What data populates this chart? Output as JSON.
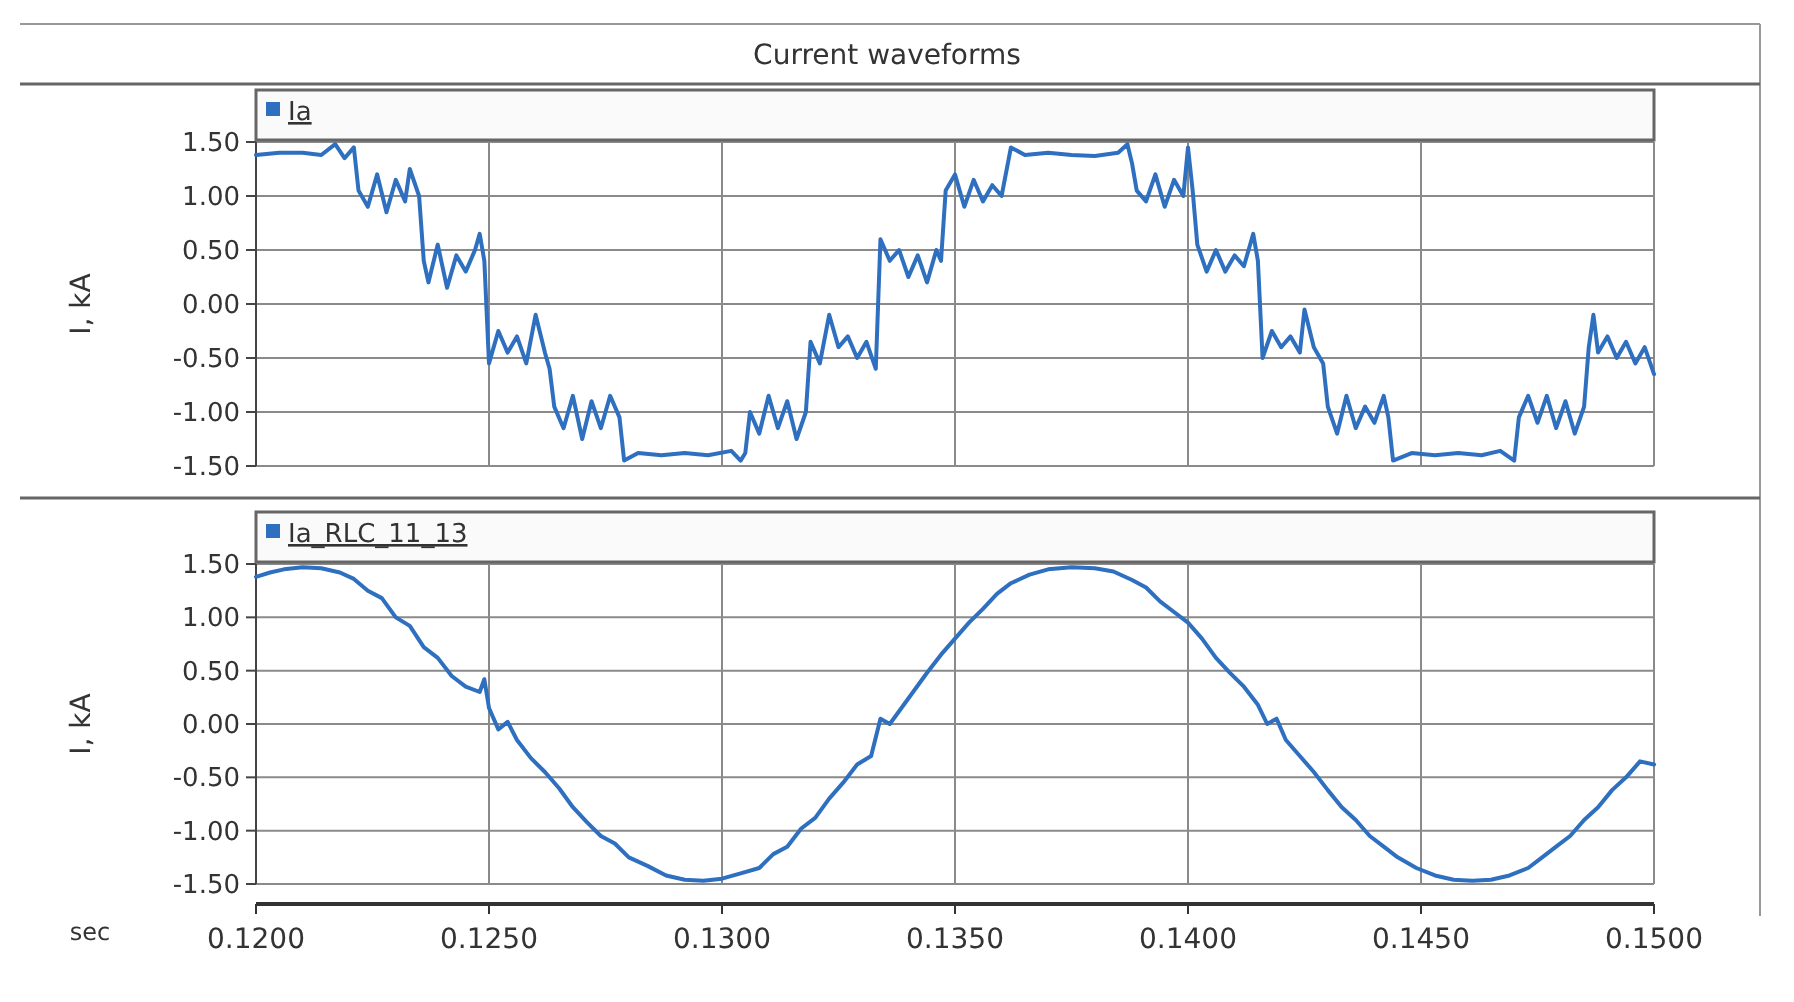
{
  "chart_data": [
    {
      "type": "line",
      "title": "Current waveforms",
      "ylabel": "I, kA",
      "xlim": [
        0.12,
        0.15
      ],
      "xticks": [
        {
          "value": 0.12,
          "label": null
        },
        {
          "value": 0.125,
          "label": null
        },
        {
          "value": 0.13,
          "label": null
        },
        {
          "value": 0.135,
          "label": null
        },
        {
          "value": 0.14,
          "label": null
        },
        {
          "value": 0.145,
          "label": null
        },
        {
          "value": 0.15,
          "label": null
        }
      ],
      "ylim": [
        -1.5,
        1.5
      ],
      "yticks": [
        {
          "value": 1.5,
          "label": "1.50"
        },
        {
          "value": 1,
          "label": "1.00"
        },
        {
          "value": 0.5,
          "label": "0.50"
        },
        {
          "value": 0,
          "label": "0.00"
        },
        {
          "value": -0.5,
          "label": "-0.50"
        },
        {
          "value": -1,
          "label": "-1.00"
        },
        {
          "value": -1.5,
          "label": "-1.50"
        }
      ],
      "grid": true,
      "legend": "top left",
      "tick_labels": "y",
      "series": [
        {
          "name": "Ia",
          "color": "#2f6fc0",
          "x": [
            0.12,
            0.1205,
            0.121,
            0.1214,
            0.1217,
            0.1219,
            0.1221,
            0.1222,
            0.1224,
            0.1226,
            0.1228,
            0.123,
            0.1232,
            0.1233,
            0.1235,
            0.1236,
            0.1237,
            0.1239,
            0.1241,
            0.1243,
            0.1245,
            0.1247,
            0.1248,
            0.1249,
            0.125,
            0.1252,
            0.1254,
            0.1256,
            0.1258,
            0.126,
            0.1262,
            0.1263,
            0.1264,
            0.1266,
            0.1268,
            0.127,
            0.1272,
            0.1274,
            0.1276,
            0.1278,
            0.1279,
            0.1282,
            0.1287,
            0.1292,
            0.1297,
            0.1302,
            0.1304,
            0.1305,
            0.1306,
            0.1308,
            0.131,
            0.1312,
            0.1314,
            0.1316,
            0.1318,
            0.1319,
            0.1321,
            0.1323,
            0.1325,
            0.1327,
            0.1329,
            0.1331,
            0.1333,
            0.1334,
            0.1336,
            0.1338,
            0.134,
            0.1342,
            0.1344,
            0.1346,
            0.1347,
            0.1348,
            0.135,
            0.1352,
            0.1354,
            0.1356,
            0.1358,
            0.136,
            0.1362,
            0.1365,
            0.137,
            0.1375,
            0.138,
            0.1385,
            0.1387,
            0.1388,
            0.1389,
            0.1391,
            0.1393,
            0.1395,
            0.1397,
            0.1399,
            0.14,
            0.1401,
            0.1402,
            0.1404,
            0.1406,
            0.1408,
            0.141,
            0.1412,
            0.1414,
            0.1415,
            0.1416,
            0.1418,
            0.142,
            0.1422,
            0.1424,
            0.1425,
            0.1427,
            0.1429,
            0.143,
            0.1432,
            0.1434,
            0.1436,
            0.1438,
            0.144,
            0.1442,
            0.1443,
            0.1444,
            0.1448,
            0.1453,
            0.1458,
            0.1463,
            0.1467,
            0.147,
            0.1471,
            0.1473,
            0.1475,
            0.1477,
            0.1479,
            0.1481,
            0.1483,
            0.1485,
            0.1486,
            0.1487,
            0.1488,
            0.149,
            0.1492,
            0.1494,
            0.1496,
            0.1498,
            0.15
          ],
          "values": [
            1.38,
            1.4,
            1.4,
            1.38,
            1.48,
            1.35,
            1.45,
            1.05,
            0.9,
            1.2,
            0.85,
            1.15,
            0.95,
            1.25,
            1.0,
            0.4,
            0.2,
            0.55,
            0.15,
            0.45,
            0.3,
            0.5,
            0.65,
            0.4,
            -0.55,
            -0.25,
            -0.45,
            -0.3,
            -0.55,
            -0.1,
            -0.45,
            -0.6,
            -0.95,
            -1.15,
            -0.85,
            -1.25,
            -0.9,
            -1.15,
            -0.85,
            -1.05,
            -1.45,
            -1.38,
            -1.4,
            -1.38,
            -1.4,
            -1.36,
            -1.45,
            -1.38,
            -1.0,
            -1.2,
            -0.85,
            -1.15,
            -0.9,
            -1.25,
            -1.0,
            -0.35,
            -0.55,
            -0.1,
            -0.4,
            -0.3,
            -0.5,
            -0.35,
            -0.6,
            0.6,
            0.4,
            0.5,
            0.25,
            0.45,
            0.2,
            0.5,
            0.4,
            1.05,
            1.2,
            0.9,
            1.15,
            0.95,
            1.1,
            1.0,
            1.45,
            1.38,
            1.4,
            1.38,
            1.37,
            1.4,
            1.48,
            1.3,
            1.05,
            0.95,
            1.2,
            0.9,
            1.15,
            1.0,
            1.45,
            1.05,
            0.55,
            0.3,
            0.5,
            0.3,
            0.45,
            0.35,
            0.65,
            0.4,
            -0.5,
            -0.25,
            -0.4,
            -0.3,
            -0.45,
            -0.05,
            -0.4,
            -0.55,
            -0.95,
            -1.2,
            -0.85,
            -1.15,
            -0.95,
            -1.1,
            -0.85,
            -1.05,
            -1.45,
            -1.38,
            -1.4,
            -1.38,
            -1.4,
            -1.36,
            -1.45,
            -1.05,
            -0.85,
            -1.1,
            -0.85,
            -1.15,
            -0.9,
            -1.2,
            -0.95,
            -0.4,
            -0.1,
            -0.45,
            -0.3,
            -0.5,
            -0.35,
            -0.55,
            -0.4,
            -0.65
          ]
        }
      ]
    },
    {
      "type": "line",
      "ylabel": "I, kA",
      "xlabel": "sec",
      "xlim": [
        0.12,
        0.15
      ],
      "xticks": [
        {
          "value": 0.12,
          "label": "0.1200"
        },
        {
          "value": 0.125,
          "label": "0.1250"
        },
        {
          "value": 0.13,
          "label": "0.1300"
        },
        {
          "value": 0.135,
          "label": "0.1350"
        },
        {
          "value": 0.14,
          "label": "0.1400"
        },
        {
          "value": 0.145,
          "label": "0.1450"
        },
        {
          "value": 0.15,
          "label": "0.1500"
        }
      ],
      "ylim": [
        -1.5,
        1.5
      ],
      "yticks": [
        {
          "value": 1.5,
          "label": "1.50"
        },
        {
          "value": 1,
          "label": "1.00"
        },
        {
          "value": 0.5,
          "label": "0.50"
        },
        {
          "value": 0,
          "label": "0.00"
        },
        {
          "value": -0.5,
          "label": "-0.50"
        },
        {
          "value": -1,
          "label": "-1.00"
        },
        {
          "value": -1.5,
          "label": "-1.50"
        }
      ],
      "grid": true,
      "legend": "top left",
      "series": [
        {
          "name": "Ia_RLC_11_13",
          "color": "#2f6fc0",
          "x": [
            0.12,
            0.1203,
            0.1206,
            0.121,
            0.1214,
            0.1218,
            0.1221,
            0.1224,
            0.1227,
            0.123,
            0.1233,
            0.1236,
            0.1239,
            0.1242,
            0.1245,
            0.1248,
            0.1249,
            0.125,
            0.1252,
            0.1254,
            0.1256,
            0.1259,
            0.1262,
            0.1265,
            0.1268,
            0.1271,
            0.1274,
            0.1277,
            0.128,
            0.1284,
            0.1288,
            0.1292,
            0.1296,
            0.13,
            0.1304,
            0.1308,
            0.1311,
            0.1314,
            0.1317,
            0.132,
            0.1323,
            0.1326,
            0.1329,
            0.1332,
            0.1334,
            0.1336,
            0.1338,
            0.1341,
            0.1344,
            0.1347,
            0.135,
            0.1353,
            0.1356,
            0.1359,
            0.1362,
            0.1366,
            0.137,
            0.1375,
            0.138,
            0.1384,
            0.1388,
            0.1391,
            0.1394,
            0.1397,
            0.14,
            0.1403,
            0.1406,
            0.1409,
            0.1412,
            0.1415,
            0.1417,
            0.1419,
            0.1421,
            0.1424,
            0.1427,
            0.143,
            0.1433,
            0.1436,
            0.1439,
            0.1442,
            0.1445,
            0.1449,
            0.1453,
            0.1457,
            0.1461,
            0.1465,
            0.1469,
            0.1473,
            0.1476,
            0.1479,
            0.1482,
            0.1485,
            0.1488,
            0.1491,
            0.1494,
            0.1497,
            0.15
          ],
          "values": [
            1.38,
            1.42,
            1.45,
            1.47,
            1.46,
            1.42,
            1.36,
            1.25,
            1.18,
            1.0,
            0.92,
            0.72,
            0.62,
            0.45,
            0.35,
            0.3,
            0.42,
            0.15,
            -0.05,
            0.02,
            -0.15,
            -0.32,
            -0.45,
            -0.6,
            -0.78,
            -0.92,
            -1.05,
            -1.12,
            -1.25,
            -1.33,
            -1.42,
            -1.46,
            -1.47,
            -1.45,
            -1.4,
            -1.35,
            -1.22,
            -1.15,
            -0.98,
            -0.88,
            -0.7,
            -0.55,
            -0.38,
            -0.3,
            0.05,
            0.0,
            0.12,
            0.3,
            0.48,
            0.65,
            0.8,
            0.95,
            1.08,
            1.22,
            1.32,
            1.4,
            1.45,
            1.47,
            1.46,
            1.43,
            1.35,
            1.28,
            1.15,
            1.05,
            0.95,
            0.8,
            0.62,
            0.48,
            0.35,
            0.18,
            0.0,
            0.05,
            -0.15,
            -0.3,
            -0.45,
            -0.62,
            -0.78,
            -0.9,
            -1.05,
            -1.15,
            -1.25,
            -1.35,
            -1.42,
            -1.46,
            -1.47,
            -1.46,
            -1.42,
            -1.35,
            -1.25,
            -1.15,
            -1.05,
            -0.9,
            -0.78,
            -0.62,
            -0.5,
            -0.35,
            -0.38
          ]
        }
      ]
    }
  ]
}
